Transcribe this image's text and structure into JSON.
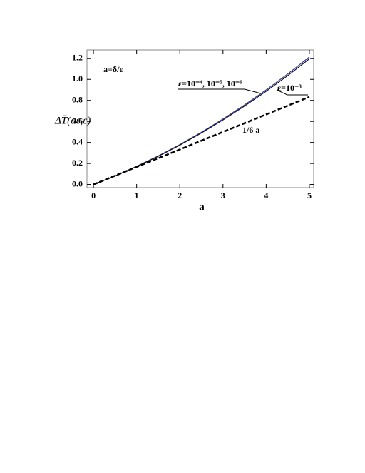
{
  "chart_data": {
    "type": "line",
    "annotation": "a=δ/ε",
    "x_label": "a",
    "y_label": "ΔT̄(aε,ε)",
    "x": [
      0,
      0.5,
      1,
      1.5,
      2,
      2.5,
      3,
      3.5,
      4,
      4.5,
      5
    ],
    "series": [
      {
        "name": "ε=10⁻⁴, 10⁻⁵, 10⁻⁶",
        "color": "#3a3f9a",
        "style": "solid",
        "values": [
          0,
          0.082,
          0.173,
          0.272,
          0.38,
          0.497,
          0.623,
          0.757,
          0.9,
          1.052,
          1.213
        ]
      },
      {
        "name": "ε=10⁻³",
        "color": "#111111",
        "style": "solid",
        "values": [
          0,
          0.081,
          0.17,
          0.268,
          0.374,
          0.49,
          0.614,
          0.746,
          0.887,
          1.036,
          1.195
        ]
      },
      {
        "name": "1/6 a",
        "color": "#000000",
        "style": "dashed",
        "values": [
          0,
          0.083,
          0.167,
          0.25,
          0.333,
          0.417,
          0.5,
          0.583,
          0.667,
          0.75,
          0.833
        ]
      }
    ],
    "xlim": [
      -0.15,
      5.1
    ],
    "ylim": [
      -0.03,
      1.28
    ],
    "xticks": [
      0,
      1,
      2,
      3,
      4,
      5
    ],
    "yticks": [
      {
        "value": 0,
        "label": "0.0"
      },
      0.2,
      0.4,
      0.6,
      0.8,
      {
        "value": 1,
        "label": "1.0"
      },
      1.2
    ]
  }
}
